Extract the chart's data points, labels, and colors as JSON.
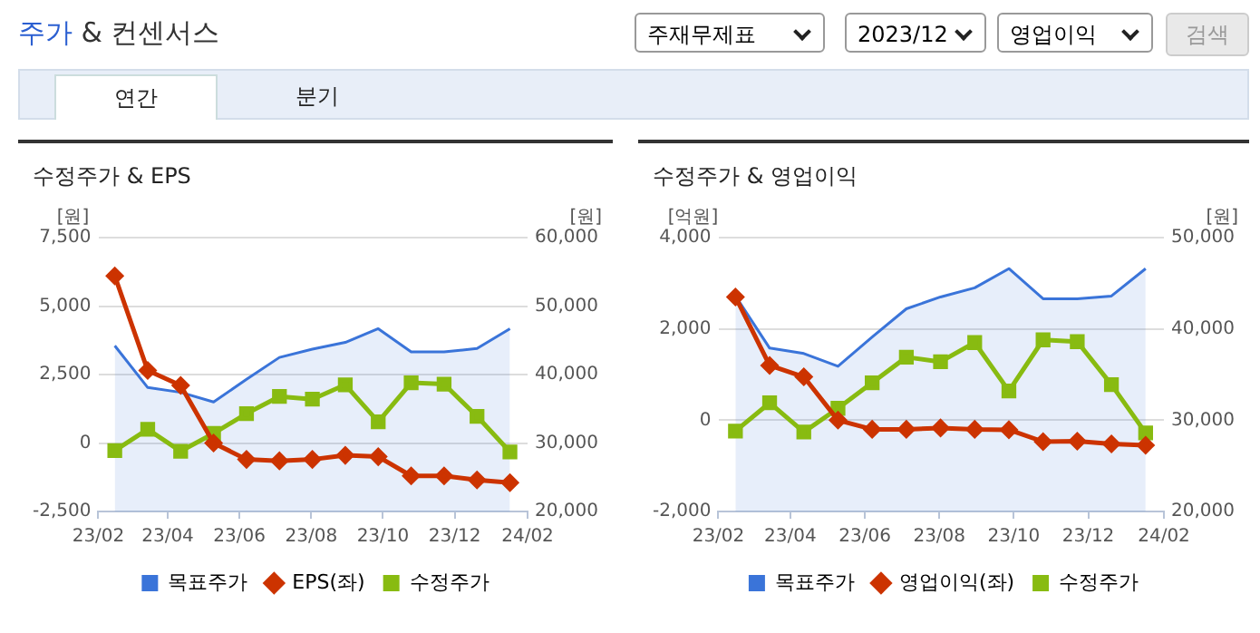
{
  "chart_data": [
    {
      "type": "line",
      "title": "수정주가 & EPS",
      "annotations": [
        "주가 & 컨센서스",
        "주재무제표",
        "2023/12",
        "영업이익",
        "검색",
        "연간",
        "분기"
      ],
      "ylabel": "[원]",
      "y2label": "[원]",
      "x": [
        "2023-02-15",
        "2023-03-15",
        "2023-04-12",
        "2023-05-10",
        "2023-06-07",
        "2023-07-05",
        "2023-08-02",
        "2023-08-30",
        "2023-09-27",
        "2023-10-25",
        "2023-11-22",
        "2023-12-20",
        "2024-01-17"
      ],
      "xlim": [
        "2023-02-01",
        "2024-02-01"
      ],
      "xticks": [
        {
          "value": "2023-02",
          "label": "23/02"
        },
        {
          "value": "2023-04",
          "label": "23/04"
        },
        {
          "value": "2023-06",
          "label": "23/06"
        },
        {
          "value": "2023-08",
          "label": "23/08"
        },
        {
          "value": "2023-10",
          "label": "23/10"
        },
        {
          "value": "2023-12",
          "label": "23/12"
        },
        {
          "value": "2024-02",
          "label": "24/02"
        }
      ],
      "ylim": [
        -2500,
        7500
      ],
      "yticks": [
        {
          "value": -2500,
          "label": "-2,500"
        },
        0,
        {
          "value": 2500,
          "label": "2,500"
        },
        {
          "value": 5000,
          "label": "5,000"
        },
        {
          "value": 7500,
          "label": "7,500"
        }
      ],
      "y2lim": [
        20000,
        60000
      ],
      "y2ticks": [
        {
          "value": 20000,
          "label": "20,000"
        },
        {
          "value": 30000,
          "label": "30,000"
        },
        {
          "value": 40000,
          "label": "40,000"
        },
        {
          "value": 50000,
          "label": "50,000"
        },
        {
          "value": 60000,
          "label": "60,000"
        }
      ],
      "grid": "y",
      "legend": "bottom",
      "series": [
        {
          "name": "목표주가",
          "type": "area",
          "axis": "y2",
          "color": "#3a74d9",
          "marker": "none",
          "values": [
            44200,
            38100,
            37400,
            36000,
            39300,
            42500,
            43700,
            44700,
            46700,
            43300,
            43300,
            43800,
            46700
          ]
        },
        {
          "name": "EPS(좌)",
          "color": "#cc3300",
          "marker": "diamond",
          "values": [
            6100,
            2650,
            2100,
            0,
            -600,
            -650,
            -600,
            -450,
            -500,
            -1200,
            -1200,
            -1350,
            -1450
          ]
        },
        {
          "name": "수정주가",
          "axis": "y2",
          "color": "#88bb11",
          "marker": "square",
          "values": [
            28900,
            32000,
            28800,
            31400,
            34300,
            36800,
            36400,
            38500,
            33100,
            38800,
            38600,
            33900,
            28700
          ]
        }
      ]
    },
    {
      "type": "line",
      "title": "수정주가 & 영업이익",
      "ylabel": "[억원]",
      "y2label": "[원]",
      "x": [
        "2023-02-15",
        "2023-03-15",
        "2023-04-12",
        "2023-05-10",
        "2023-06-07",
        "2023-07-05",
        "2023-08-02",
        "2023-08-30",
        "2023-09-27",
        "2023-10-25",
        "2023-11-22",
        "2023-12-20",
        "2024-01-17"
      ],
      "xlim": [
        "2023-02-01",
        "2024-02-01"
      ],
      "xticks": [
        {
          "value": "2023-02",
          "label": "23/02"
        },
        {
          "value": "2023-04",
          "label": "23/04"
        },
        {
          "value": "2023-06",
          "label": "23/06"
        },
        {
          "value": "2023-08",
          "label": "23/08"
        },
        {
          "value": "2023-10",
          "label": "23/10"
        },
        {
          "value": "2023-12",
          "label": "23/12"
        },
        {
          "value": "2024-02",
          "label": "24/02"
        }
      ],
      "ylim": [
        -2000,
        4000
      ],
      "yticks": [
        {
          "value": -2000,
          "label": "-2,000"
        },
        0,
        {
          "value": 2000,
          "label": "2,000"
        },
        {
          "value": 4000,
          "label": "4,000"
        }
      ],
      "y2lim": [
        20000,
        50000
      ],
      "y2ticks": [
        {
          "value": 20000,
          "label": "20,000"
        },
        {
          "value": 30000,
          "label": "30,000"
        },
        {
          "value": 40000,
          "label": "40,000"
        },
        {
          "value": 50000,
          "label": "50,000"
        }
      ],
      "grid": "y",
      "legend": "bottom",
      "series": [
        {
          "name": "목표주가",
          "type": "area",
          "axis": "y2",
          "color": "#3a74d9",
          "marker": "none",
          "values": [
            43600,
            37900,
            37300,
            35900,
            39100,
            42200,
            43500,
            44500,
            46600,
            43300,
            43300,
            43600,
            46600
          ]
        },
        {
          "name": "영업이익(좌)",
          "color": "#cc3300",
          "marker": "diamond",
          "values": [
            2700,
            1200,
            950,
            0,
            -200,
            -200,
            -170,
            -200,
            -210,
            -470,
            -460,
            -520,
            -550
          ]
        },
        {
          "name": "수정주가",
          "axis": "y2",
          "color": "#88bb11",
          "marker": "square",
          "values": [
            28800,
            31900,
            28700,
            31300,
            34100,
            36900,
            36400,
            38500,
            33200,
            38800,
            38600,
            33900,
            28600
          ]
        }
      ]
    }
  ]
}
